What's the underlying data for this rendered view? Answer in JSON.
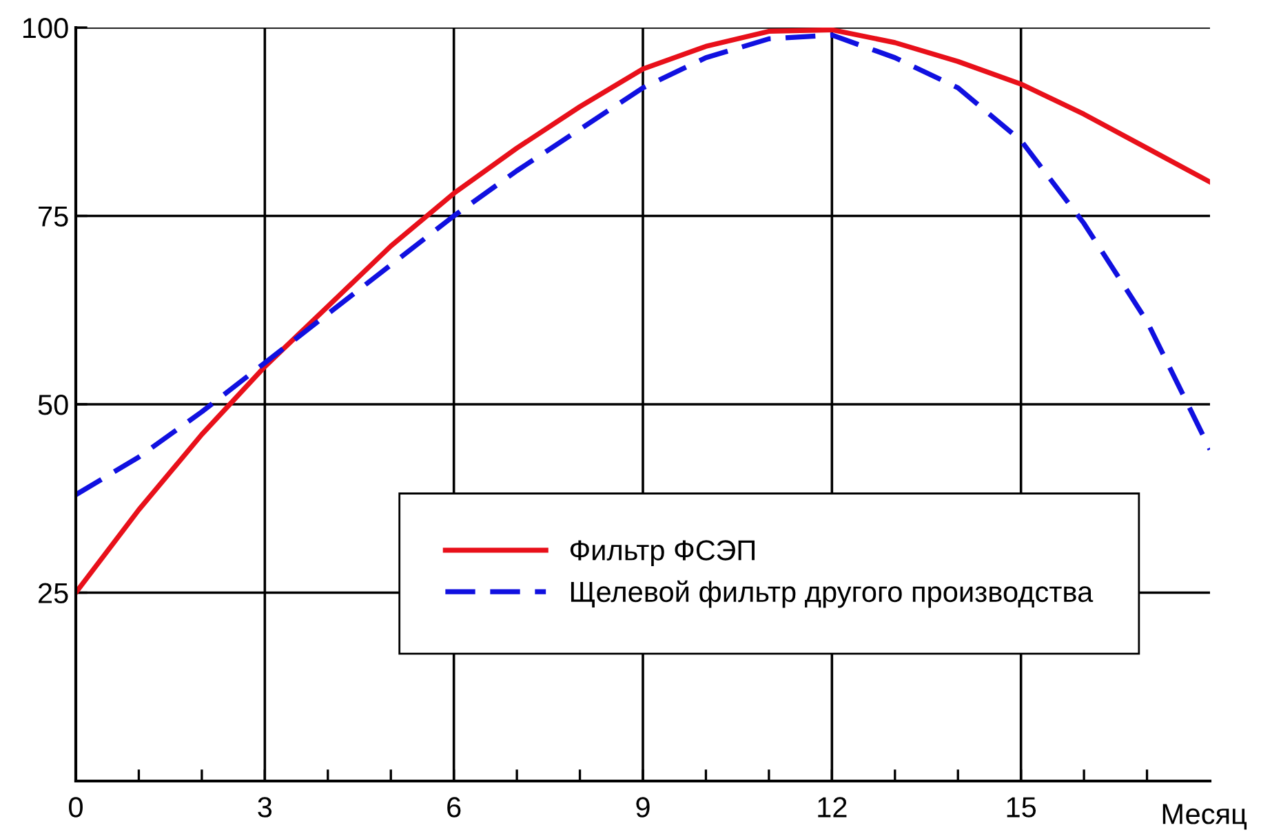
{
  "chart_data": {
    "type": "line",
    "xlabel": "Месяц",
    "x": [
      0,
      1,
      2,
      3,
      4,
      5,
      6,
      7,
      8,
      9,
      10,
      11,
      12,
      13,
      14,
      15,
      16,
      17,
      18
    ],
    "series": [
      {
        "name": "Фильтр ФСЭП",
        "color": "#e8101a",
        "line_style": "solid",
        "values": [
          25,
          36,
          46,
          55,
          63,
          71,
          78,
          84,
          89.5,
          94.5,
          97.5,
          99.5,
          99.7,
          98,
          95.5,
          92.5,
          88.5,
          84,
          79.5
        ]
      },
      {
        "name": "Щелевой фильтр другого производства",
        "color": "#1010e0",
        "line_style": "dashed",
        "values": [
          38,
          43,
          49,
          55.5,
          62,
          68.5,
          75,
          81,
          86.5,
          92,
          96,
          98.5,
          99,
          96,
          92,
          85,
          74,
          61,
          44
        ]
      }
    ],
    "xlim": [
      0,
      18
    ],
    "ylim": [
      0,
      100
    ],
    "xticks": [
      0,
      {
        "value": 1,
        "label": null
      },
      {
        "value": 2,
        "label": null
      },
      3,
      {
        "value": 4,
        "label": null
      },
      {
        "value": 5,
        "label": null
      },
      6,
      {
        "value": 7,
        "label": null
      },
      {
        "value": 8,
        "label": null
      },
      9,
      {
        "value": 10,
        "label": null
      },
      {
        "value": 11,
        "label": null
      },
      12,
      {
        "value": 13,
        "label": null
      },
      {
        "value": 14,
        "label": null
      },
      15,
      {
        "value": 16,
        "label": null
      },
      {
        "value": 17,
        "label": null
      }
    ],
    "yticks": [
      25,
      50,
      75,
      100
    ],
    "grid": true,
    "legend": "bottom right",
    "marker": "none"
  }
}
